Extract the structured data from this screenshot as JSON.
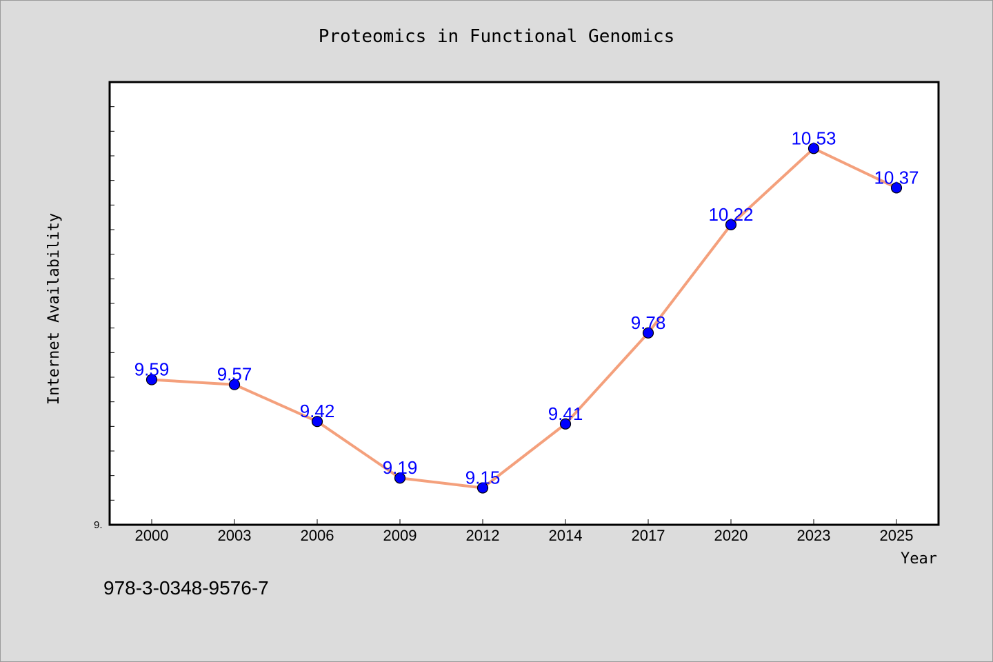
{
  "chart_data": {
    "type": "line",
    "title": "Proteomics in Functional Genomics",
    "xlabel": "Year",
    "ylabel": "Internet Availability",
    "categories": [
      "2000",
      "2003",
      "2006",
      "2009",
      "2012",
      "2014",
      "2017",
      "2020",
      "2023",
      "2025"
    ],
    "series": [
      {
        "values": [
          9.59,
          9.57,
          9.42,
          9.19,
          9.15,
          9.41,
          9.78,
          10.22,
          10.53,
          10.37
        ]
      }
    ],
    "ylim": [
      9.0,
      10.8
    ],
    "y_tick_label": "9.",
    "grid": false,
    "line_color": "#f4a07c",
    "marker_color": "#0000ff",
    "label_color": "#0000ff"
  },
  "footer": {
    "isbn": "978-3-0348-9576-7"
  }
}
